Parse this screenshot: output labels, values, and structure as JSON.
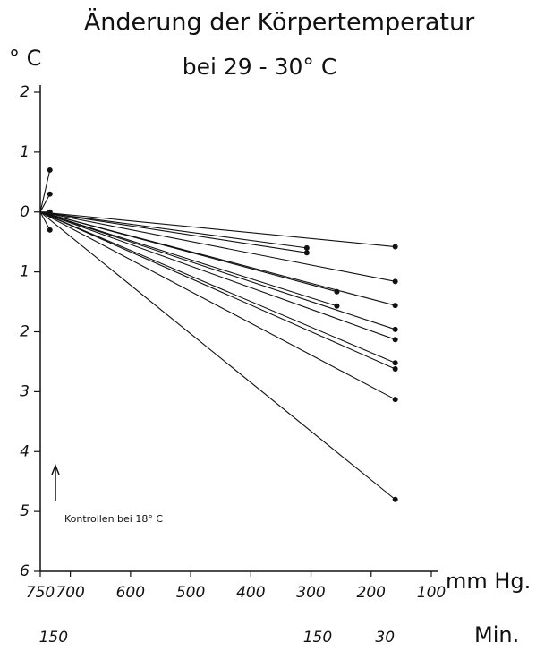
{
  "chart_data": {
    "type": "line",
    "title": "Änderung der Körpertemperatur",
    "subtitle": "bei 29 - 30° C",
    "y_label": "° C",
    "x_label": "mm Hg.",
    "x2_label": "Min.",
    "annotation": "Kontrollen bei 18° C",
    "color": "#111111",
    "xlim": [
      750,
      100
    ],
    "xticks": [
      750,
      700,
      600,
      500,
      400,
      300,
      200,
      100
    ],
    "ylim": [
      -6,
      2
    ],
    "yticks": [
      2,
      1,
      0,
      {
        "value": -1,
        "label": "1"
      },
      {
        "value": -2,
        "label": "2"
      },
      {
        "value": -3,
        "label": "3"
      },
      {
        "value": -4,
        "label": "4"
      },
      {
        "value": -5,
        "label": "5"
      },
      {
        "value": -6,
        "label": "6"
      }
    ],
    "x2ticks": [
      {
        "value": 728,
        "label": "150"
      },
      {
        "value": 289,
        "label": "150"
      },
      {
        "value": 177,
        "label": "30"
      }
    ],
    "series": [
      {
        "x": [
          750,
          160
        ],
        "values": [
          0,
          -0.58
        ]
      },
      {
        "x": [
          750,
          160
        ],
        "values": [
          0,
          -1.16
        ]
      },
      {
        "x": [
          750,
          160
        ],
        "values": [
          0,
          -1.56
        ]
      },
      {
        "x": [
          750,
          160
        ],
        "values": [
          0,
          -1.96
        ]
      },
      {
        "x": [
          750,
          160
        ],
        "values": [
          0,
          -2.13
        ]
      },
      {
        "x": [
          750,
          160
        ],
        "values": [
          0,
          -2.52
        ]
      },
      {
        "x": [
          750,
          160
        ],
        "values": [
          0,
          -2.62
        ]
      },
      {
        "x": [
          750,
          160
        ],
        "values": [
          0,
          -3.13
        ]
      },
      {
        "x": [
          750,
          160
        ],
        "values": [
          0,
          -4.8
        ]
      },
      {
        "x": [
          750,
          307
        ],
        "values": [
          0,
          -0.6
        ]
      },
      {
        "x": [
          750,
          307
        ],
        "values": [
          0,
          -0.68
        ]
      },
      {
        "x": [
          750,
          257
        ],
        "values": [
          0,
          -1.33
        ]
      },
      {
        "x": [
          750,
          257
        ],
        "values": [
          0,
          -1.57
        ]
      },
      {
        "x": [
          750,
          734
        ],
        "values": [
          0,
          0.7
        ]
      },
      {
        "x": [
          750,
          734
        ],
        "values": [
          0,
          0.3
        ]
      },
      {
        "x": [
          750,
          734
        ],
        "values": [
          0,
          0
        ]
      },
      {
        "x": [
          750,
          734
        ],
        "values": [
          0,
          -0.3
        ]
      }
    ]
  }
}
